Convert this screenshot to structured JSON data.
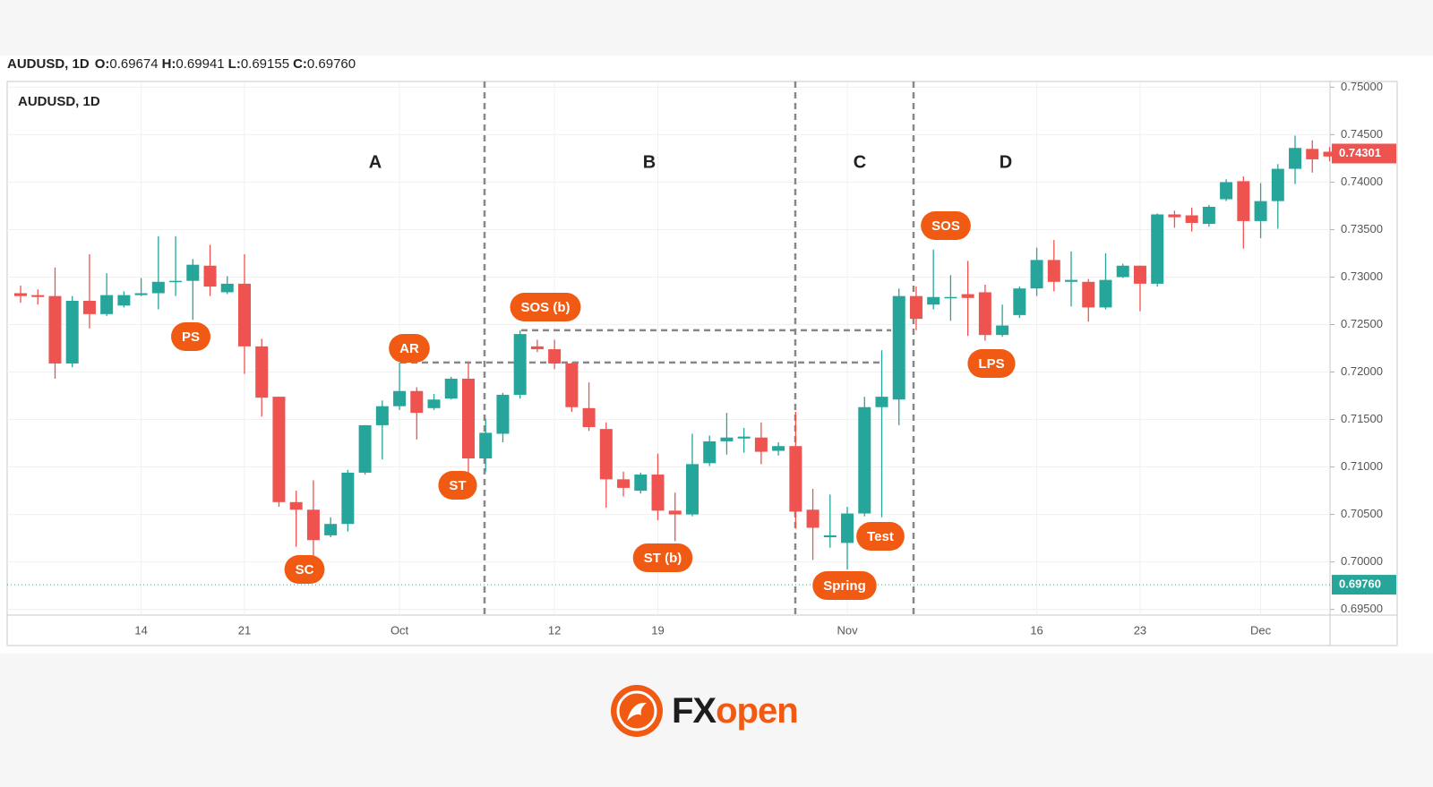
{
  "chart_data": {
    "type": "candlestick",
    "symbol": "AUDUSD, 1D",
    "header_values": [
      {
        "label": "O:",
        "value": "0.69674"
      },
      {
        "label": "H:",
        "value": "0.69941"
      },
      {
        "label": "L:",
        "value": "0.69155"
      },
      {
        "label": "C:",
        "value": "0.69760"
      }
    ],
    "categories": [
      null,
      null,
      null,
      null,
      null,
      null,
      null,
      "14",
      null,
      null,
      null,
      null,
      null,
      "21",
      null,
      null,
      null,
      null,
      null,
      null,
      null,
      null,
      "Oct",
      null,
      null,
      null,
      null,
      null,
      null,
      null,
      null,
      "12",
      null,
      null,
      null,
      null,
      null,
      "19",
      null,
      null,
      null,
      null,
      null,
      null,
      null,
      null,
      null,
      null,
      "Nov",
      null,
      null,
      null,
      null,
      null,
      null,
      null,
      null,
      null,
      null,
      "16",
      null,
      null,
      null,
      null,
      null,
      "23",
      null,
      null,
      null,
      null,
      null,
      null,
      "Dec",
      null,
      null,
      null,
      null
    ],
    "open": [
      0.7283,
      0.7281,
      0.728,
      0.7209,
      0.7275,
      0.7261,
      0.727,
      0.7281,
      0.7283,
      0.7295,
      0.7296,
      0.7312,
      0.7284,
      0.7293,
      0.7227,
      0.7174,
      0.7063,
      0.7055,
      0.7028,
      0.704,
      0.7094,
      0.7144,
      0.7164,
      0.718,
      0.7162,
      0.7172,
      0.7193,
      0.7109,
      0.7135,
      0.7176,
      0.7227,
      0.7224,
      0.7209,
      0.7162,
      0.714,
      0.7087,
      0.7075,
      0.7092,
      0.7054,
      0.705,
      0.7104,
      0.7127,
      0.713,
      0.7131,
      0.7117,
      0.7122,
      0.7055,
      0.7026,
      0.702,
      0.7051,
      0.7163,
      0.7171,
      0.728,
      0.7271,
      0.7278,
      0.7282,
      0.7284,
      0.7239,
      0.726,
      0.7288,
      0.7318,
      0.7295,
      0.7295,
      0.7268,
      0.73,
      0.7312,
      0.7293,
      0.7366,
      0.7365,
      0.7356,
      0.7382,
      0.7401,
      0.7359,
      0.738,
      0.7414,
      0.7435,
      0.7432
    ],
    "high": [
      0.7291,
      0.7287,
      0.731,
      0.728,
      0.7324,
      0.7304,
      0.7285,
      0.7299,
      0.7343,
      0.7343,
      0.7319,
      0.7334,
      0.7301,
      0.7324,
      0.7235,
      0.7174,
      0.7075,
      0.7086,
      0.7047,
      0.7097,
      0.7144,
      0.717,
      0.721,
      0.7184,
      0.7177,
      0.7195,
      0.721,
      0.7151,
      0.7178,
      0.7244,
      0.7234,
      0.7234,
      0.721,
      0.7189,
      0.7147,
      0.7095,
      0.7094,
      0.7114,
      0.7073,
      0.7135,
      0.7133,
      0.7157,
      0.7141,
      0.7147,
      0.7126,
      0.7158,
      0.7077,
      0.7071,
      0.7058,
      0.7174,
      0.7223,
      0.7288,
      0.729,
      0.7329,
      0.7302,
      0.7317,
      0.7292,
      0.7271,
      0.729,
      0.7331,
      0.7339,
      0.7327,
      0.7298,
      0.7325,
      0.7314,
      0.7312,
      0.7367,
      0.737,
      0.7373,
      0.7376,
      0.7403,
      0.7406,
      0.7399,
      0.7419,
      0.7449,
      0.7444,
      0.7437
    ],
    "low": [
      0.7273,
      0.7271,
      0.7193,
      0.7205,
      0.7246,
      0.7259,
      0.7268,
      0.728,
      0.7266,
      0.728,
      0.7255,
      0.728,
      0.7282,
      0.7198,
      0.7153,
      0.7058,
      0.7016,
      0.7006,
      0.7026,
      0.7032,
      0.7092,
      0.7108,
      0.716,
      0.7129,
      0.716,
      0.7171,
      0.7094,
      0.7095,
      0.7126,
      0.7172,
      0.7221,
      0.7203,
      0.7158,
      0.7138,
      0.7057,
      0.7069,
      0.7072,
      0.7044,
      0.7022,
      0.7048,
      0.7101,
      0.7113,
      0.7115,
      0.7103,
      0.7112,
      0.7035,
      0.7002,
      0.7015,
      0.6992,
      0.7048,
      0.7047,
      0.7144,
      0.7244,
      0.7266,
      0.7254,
      0.7238,
      0.7233,
      0.7237,
      0.7257,
      0.728,
      0.7285,
      0.7269,
      0.7253,
      0.7266,
      0.7299,
      0.7264,
      0.729,
      0.7352,
      0.7348,
      0.7353,
      0.738,
      0.733,
      0.7341,
      0.7351,
      0.7398,
      0.741,
      0.7422
    ],
    "close": [
      0.728,
      0.7279,
      0.7209,
      0.7275,
      0.7261,
      0.7281,
      0.7281,
      0.7283,
      0.7295,
      0.7296,
      0.7313,
      0.729,
      0.7293,
      0.7227,
      0.7173,
      0.7063,
      0.7055,
      0.7023,
      0.704,
      0.7094,
      0.7144,
      0.7164,
      0.718,
      0.7157,
      0.7171,
      0.7193,
      0.7109,
      0.7136,
      0.7176,
      0.724,
      0.7224,
      0.7209,
      0.7163,
      0.7142,
      0.7087,
      0.7078,
      0.7092,
      0.7054,
      0.705,
      0.7103,
      0.7127,
      0.7131,
      0.7132,
      0.7116,
      0.7122,
      0.7053,
      0.7036,
      0.7028,
      0.7051,
      0.7163,
      0.7174,
      0.728,
      0.7256,
      0.7279,
      0.7279,
      0.7278,
      0.7239,
      0.7249,
      0.7288,
      0.7318,
      0.7295,
      0.7297,
      0.7268,
      0.7297,
      0.7312,
      0.7293,
      0.7366,
      0.7363,
      0.7357,
      0.7374,
      0.74,
      0.7359,
      0.738,
      0.7414,
      0.7436,
      0.7424,
      0.7427
    ],
    "up_color": "#26a69a",
    "down_color": "#ef5350",
    "ylim": [
      0.6944,
      0.7506
    ],
    "yticks": [
      {
        "value": 0.695,
        "label": "0.69500"
      },
      {
        "value": 0.7,
        "label": "0.70000"
      },
      {
        "value": 0.705,
        "label": "0.70500"
      },
      {
        "value": 0.71,
        "label": "0.71000"
      },
      {
        "value": 0.715,
        "label": "0.71500"
      },
      {
        "value": 0.72,
        "label": "0.72000"
      },
      {
        "value": 0.725,
        "label": "0.72500"
      },
      {
        "value": 0.73,
        "label": "0.73000"
      },
      {
        "value": 0.735,
        "label": "0.73500"
      },
      {
        "value": 0.74,
        "label": "0.74000"
      },
      {
        "value": 0.745,
        "label": "0.74500"
      },
      {
        "value": 0.75,
        "label": "0.75000"
      }
    ],
    "grid": true,
    "price_lines": [
      {
        "value": 0.74301,
        "label": "0.74301",
        "color": "#ef5350",
        "dotted": false
      },
      {
        "value": 0.6976,
        "label": "0.69760",
        "color": "#26a69a",
        "dotted": true
      }
    ],
    "levels": [
      0.721,
      0.7244
    ],
    "phases": [
      "A",
      "B",
      "C",
      "D"
    ],
    "annotations": [
      "PS",
      "SC",
      "AR",
      "ST",
      "SOS (b)",
      "ST (b)",
      "Spring",
      "Test",
      "SOS",
      "LPS"
    ],
    "annotation_color": "#f05a12"
  },
  "footer": {
    "brand_fx": "FX",
    "brand_open": "open"
  }
}
